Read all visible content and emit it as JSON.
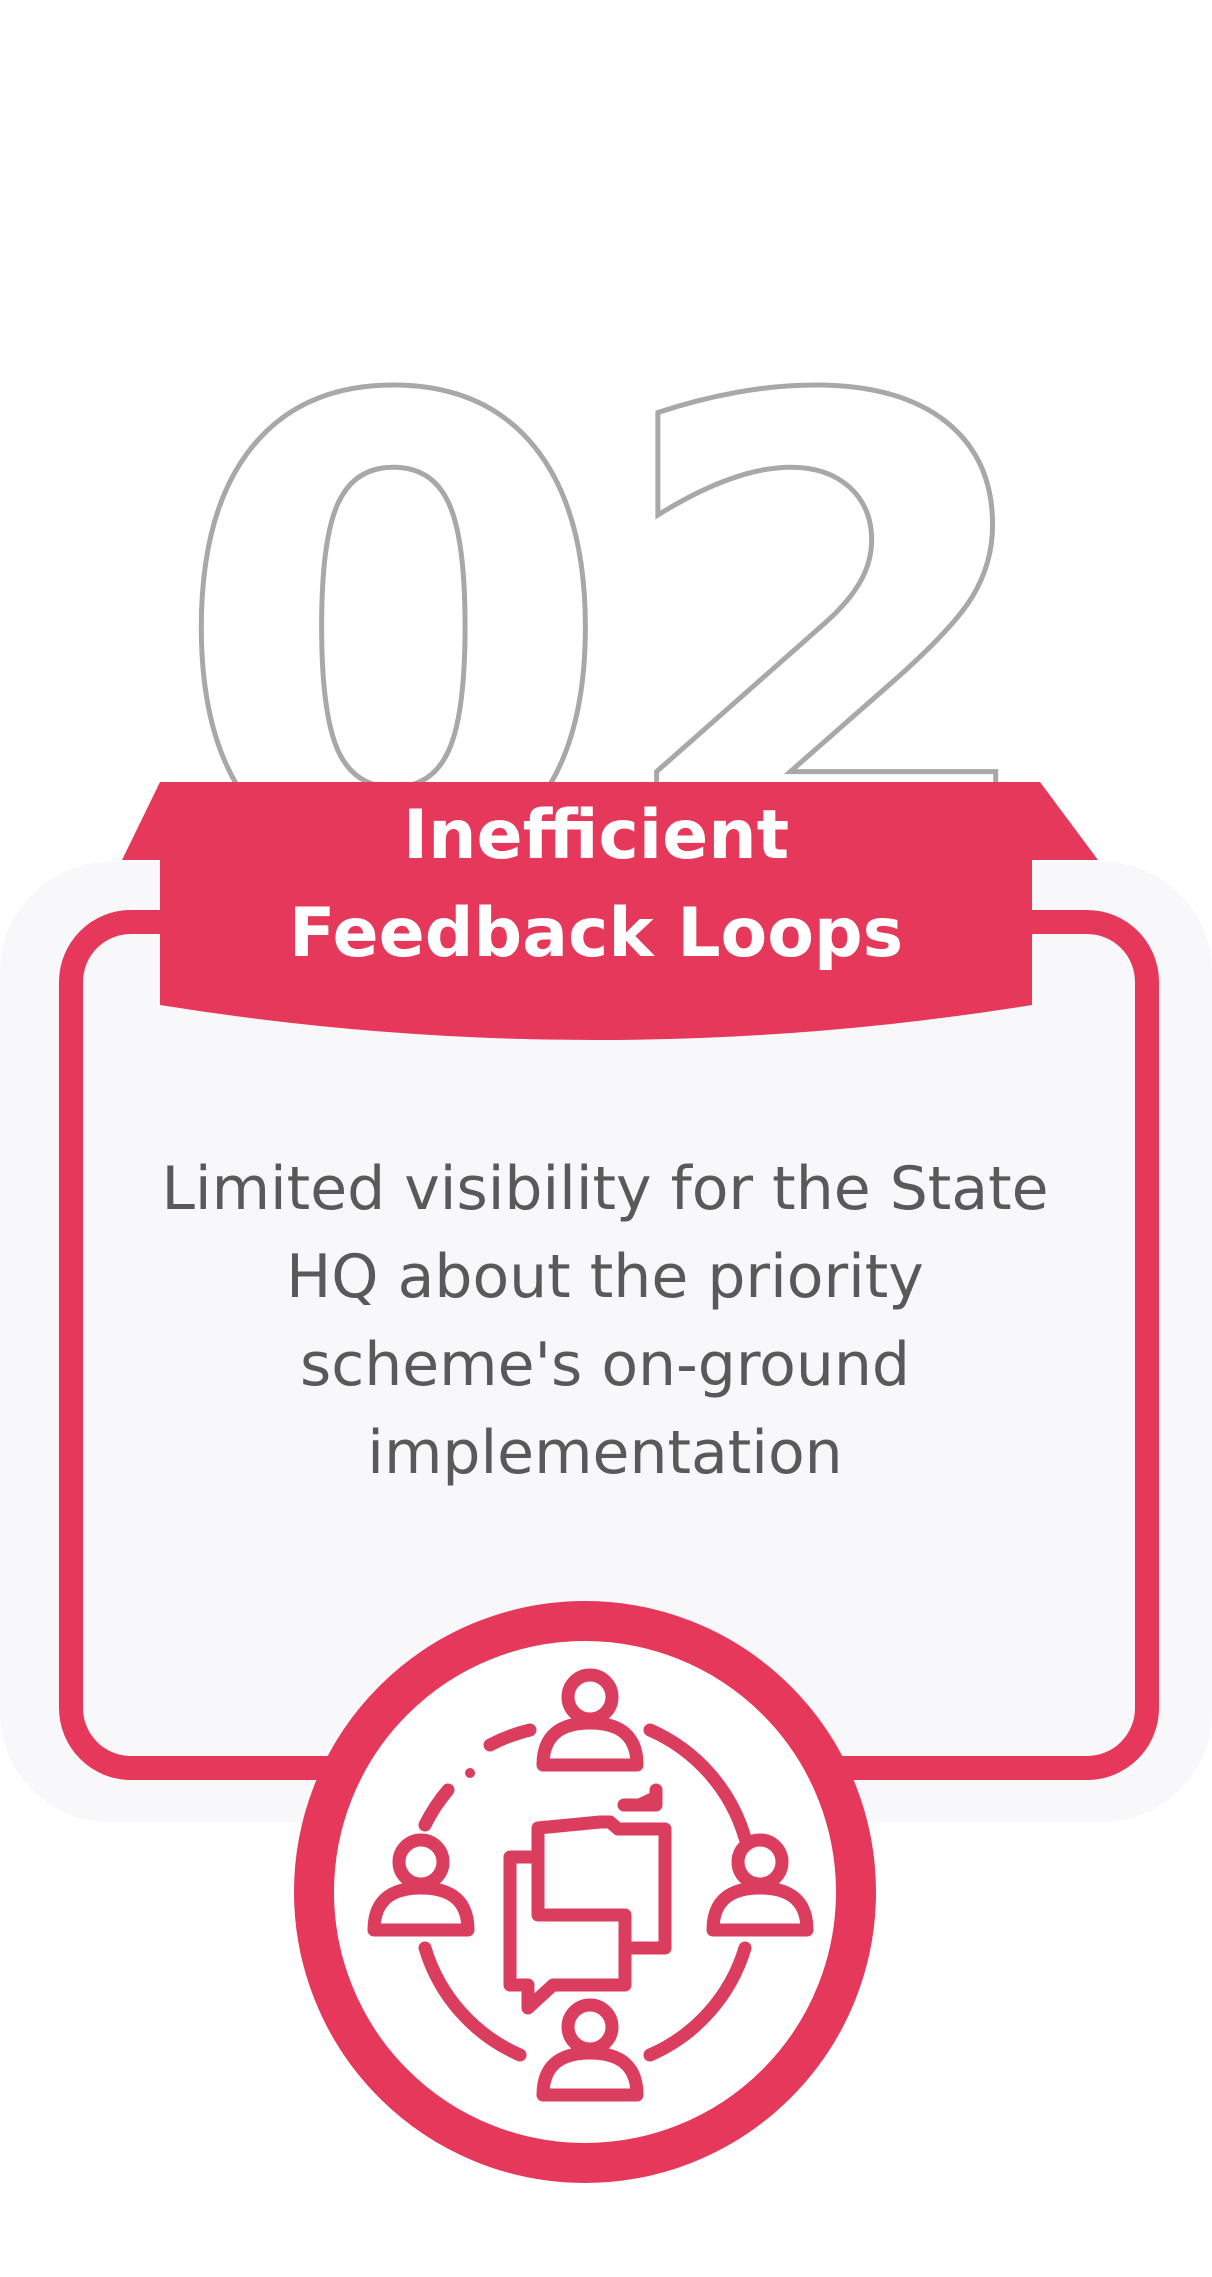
{
  "card": {
    "number": "02",
    "title": "Inefficient\nFeedback Loops",
    "description": "Limited visibility for the State\nHQ about the priority\nscheme's on-ground\nimplementation",
    "icon": "team-communication-icon"
  },
  "colors": {
    "accent": "#e5385a",
    "number_outline": "#a8a8a8",
    "panel_background": "#f8f8fb",
    "text": "#595959",
    "banner_text": "#ffffff"
  }
}
